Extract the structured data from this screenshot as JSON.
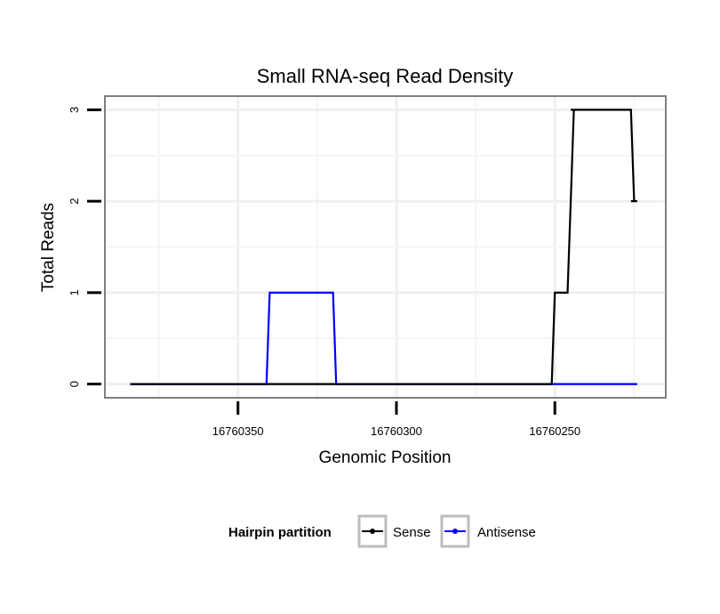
{
  "chart_data": {
    "type": "line",
    "title": "Small RNA-seq Read Density",
    "xlabel": "Genomic Position",
    "ylabel": "Total Reads",
    "x_reversed": true,
    "xlim": [
      16760392,
      16760215
    ],
    "ylim": [
      -0.15,
      3.15
    ],
    "x_ticks": [
      16760350,
      16760300,
      16760250
    ],
    "x_tick_labels": [
      "16760350",
      "16760300",
      "16760250"
    ],
    "y_ticks": [
      0,
      1,
      2,
      3
    ],
    "y_tick_labels": [
      "0",
      "1",
      "2",
      "3"
    ],
    "grid": true,
    "legend": {
      "title": "Hairpin partition",
      "position": "bottom",
      "entries": [
        "Sense",
        "Antisense"
      ]
    },
    "series": [
      {
        "name": "Sense",
        "color": "#000000",
        "x": [
          16760384,
          16760251,
          16760250,
          16760249,
          16760248,
          16760247,
          16760246,
          16760245,
          16760244,
          16760245,
          16760244,
          16760227,
          16760226,
          16760225,
          16760226,
          16760225,
          16760224
        ],
        "y": [
          0,
          0,
          1,
          1,
          1,
          1,
          1,
          2,
          3,
          3,
          3,
          3,
          3,
          2,
          2,
          2,
          2
        ]
      },
      {
        "name": "Antisense",
        "color": "#0000ff",
        "x": [
          16760384,
          16760341,
          16760340,
          16760320,
          16760319,
          16760224
        ],
        "y": [
          0,
          0,
          1,
          1,
          0,
          0
        ]
      }
    ]
  }
}
